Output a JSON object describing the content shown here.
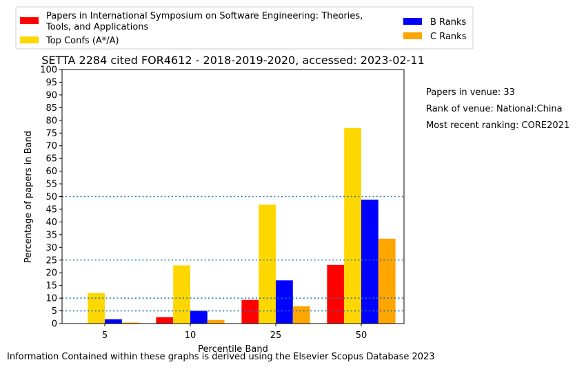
{
  "chart_data": {
    "type": "bar",
    "title": "SETTA 2284 cited FOR4612 - 2018-2019-2020, accessed: 2023-02-11",
    "xlabel": "Percentile Band",
    "ylabel": "Percentage of papers in Band",
    "categories": [
      "5",
      "10",
      "25",
      "50"
    ],
    "ylim": [
      0,
      100
    ],
    "yticks": [
      0,
      5,
      10,
      15,
      20,
      25,
      30,
      35,
      40,
      45,
      50,
      55,
      60,
      65,
      70,
      75,
      80,
      85,
      90,
      95,
      100
    ],
    "reference_lines": [
      5,
      10,
      25,
      50
    ],
    "reference_line_color": "#1f77b4",
    "grid": false,
    "legend_position": "top",
    "series": [
      {
        "name": "Papers in International Symposium on Software Engineering: Theories, Tools, and Applications",
        "color": "#ff0000",
        "values": [
          0,
          2.5,
          9.3,
          23.1
        ]
      },
      {
        "name": "Top Confs (A*/A)",
        "color": "#ffd700",
        "values": [
          12.0,
          22.9,
          46.8,
          77.0
        ]
      },
      {
        "name": "B Ranks",
        "color": "#0000ff",
        "values": [
          1.7,
          5.0,
          17.0,
          48.8
        ]
      },
      {
        "name": "C Ranks",
        "color": "#ffa500",
        "values": [
          0.4,
          1.4,
          6.8,
          33.4
        ]
      }
    ]
  },
  "legend": {
    "series_label_line1": "Papers in International Symposium on Software Engineering: Theories,",
    "series_label_line2": "Tools, and Applications"
  },
  "info": {
    "papers_in_venue": "Papers in venue: 33",
    "rank_of_venue": "Rank of venue: National:China",
    "most_recent_ranking": "Most recent ranking: CORE2021"
  },
  "footer": "Information Contained within these graphs is derived using the Elsevier Scopus Database 2023"
}
